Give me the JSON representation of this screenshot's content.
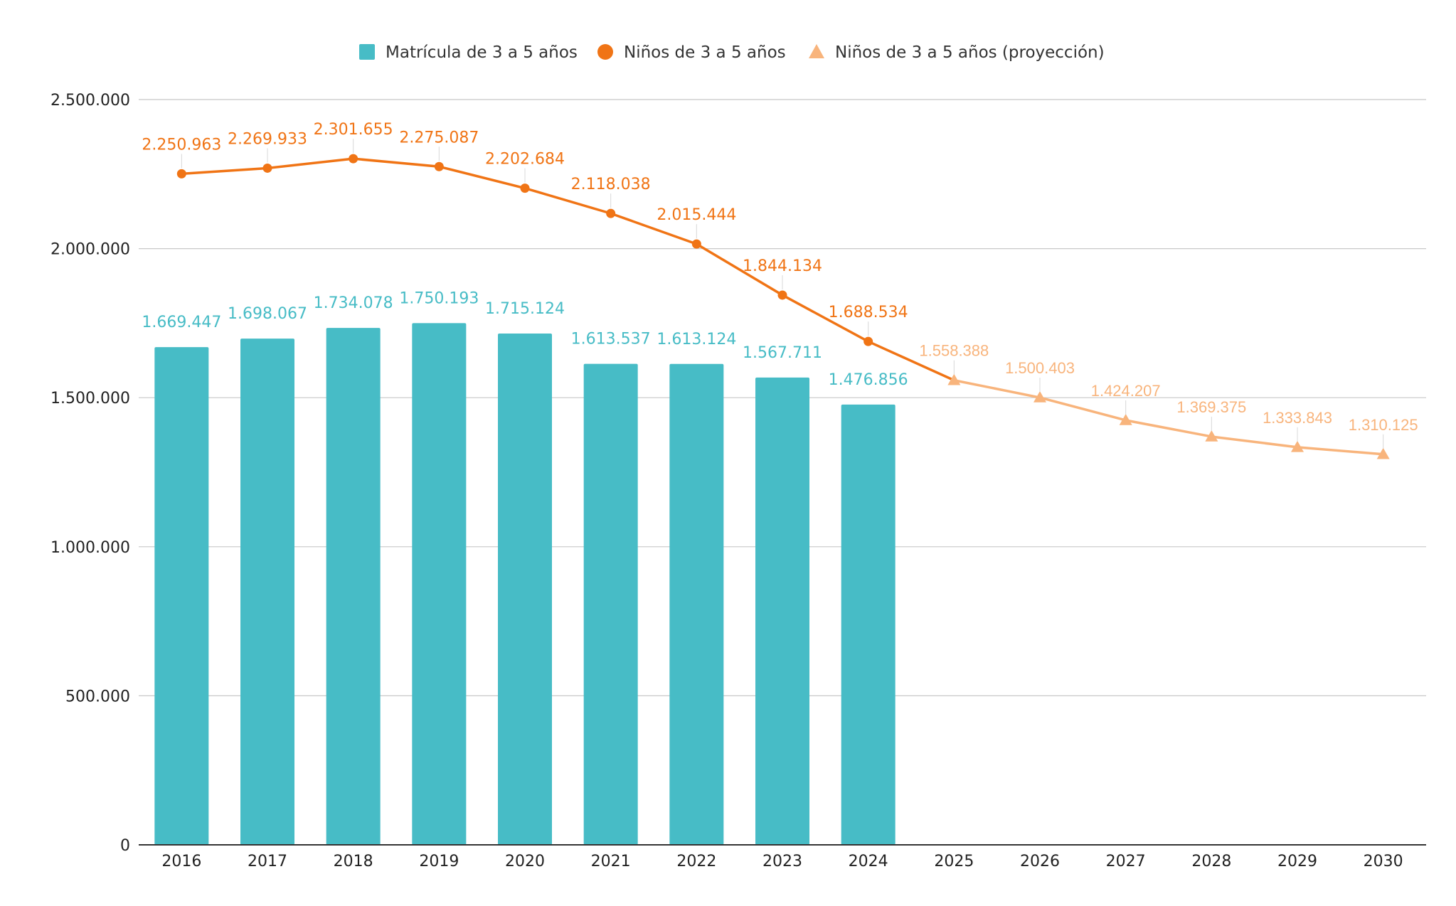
{
  "chart_data": {
    "type": "bar",
    "categories": [
      "2016",
      "2017",
      "2018",
      "2019",
      "2020",
      "2021",
      "2022",
      "2023",
      "2024",
      "2025",
      "2026",
      "2027",
      "2028",
      "2029",
      "2030"
    ],
    "ylim": [
      0,
      2500000
    ],
    "yticks": [
      0,
      500000,
      1000000,
      1500000,
      2000000,
      2500000
    ],
    "ytick_labels": [
      "0",
      "500.000",
      "1.000.000",
      "1.500.000",
      "2.000.000",
      "2.500.000"
    ],
    "grid": true,
    "legend_position": "top-center",
    "series": [
      {
        "name": "Matrícula de 3 a 5 años",
        "type": "bar",
        "color": "#47bcc6",
        "values": [
          1669447,
          1698067,
          1734078,
          1750193,
          1715124,
          1613537,
          1613124,
          1567711,
          1476856,
          null,
          null,
          null,
          null,
          null,
          null
        ],
        "labels": [
          "1.669.447",
          "1.698.067",
          "1.734.078",
          "1.750.193",
          "1.715.124",
          "1.613.537",
          "1.613.124",
          "1.567.711",
          "1.476.856",
          null,
          null,
          null,
          null,
          null,
          null
        ]
      },
      {
        "name": "Niños de 3 a 5 años",
        "type": "line",
        "marker": "circle",
        "color": "#f07415",
        "values": [
          2250963,
          2269933,
          2301655,
          2275087,
          2202684,
          2118038,
          2015444,
          1844134,
          1688534,
          1558388,
          null,
          null,
          null,
          null,
          null
        ],
        "labels": [
          "2.250.963",
          "2.269.933",
          "2.301.655",
          "2.275.087",
          "2.202.684",
          "2.118.038",
          "2.015.444",
          "1.844.134",
          "1.688.534",
          null,
          null,
          null,
          null,
          null,
          null
        ]
      },
      {
        "name": "Niños de 3 a 5 años (proyección)",
        "type": "line",
        "marker": "triangle",
        "color": "#f8b47c",
        "values": [
          null,
          null,
          null,
          null,
          null,
          null,
          null,
          null,
          null,
          1558388,
          1500403,
          1424207,
          1369375,
          1333843,
          1310125
        ],
        "labels": [
          null,
          null,
          null,
          null,
          null,
          null,
          null,
          null,
          null,
          "1.558.388",
          "1.500.403",
          "1.424.207",
          "1.369.375",
          "1.333.843",
          "1.310.125"
        ]
      }
    ]
  }
}
